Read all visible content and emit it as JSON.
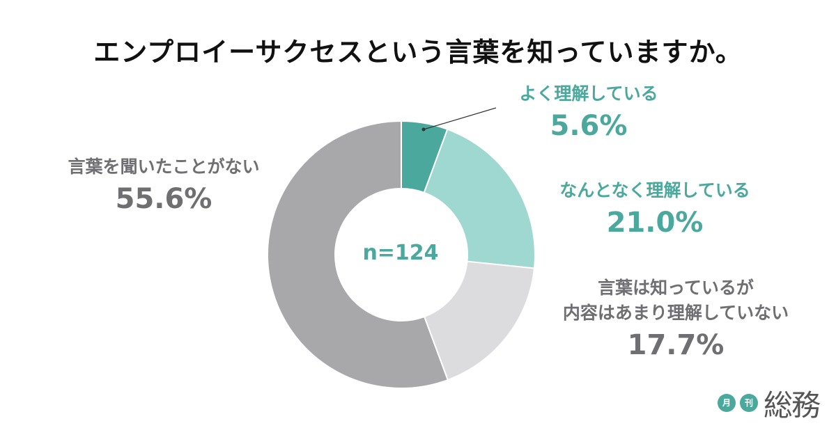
{
  "title": "エンプロイーサクセスという言葉を知っていますか。",
  "chart_data": {
    "type": "pie",
    "style": "donut",
    "sample_size": "n=124",
    "slices": [
      {
        "label": "よく理解している",
        "value": 5.6,
        "value_label": "5.6%",
        "color": "#4aa89c"
      },
      {
        "label": "なんとなく理解している",
        "value": 21.0,
        "value_label": "21.0%",
        "color": "#9fd8d0"
      },
      {
        "label_lines": [
          "言葉は知っているが",
          "内容はあまり理解していない"
        ],
        "value": 17.7,
        "value_label": "17.7%",
        "color": "#dcdbde"
      },
      {
        "label": "言葉を聞いたことがない",
        "value": 55.6,
        "value_label": "55.6%",
        "color": "#a8a7aa"
      }
    ]
  },
  "logo": {
    "badge1": "月",
    "badge2": "刊",
    "name": "総務"
  }
}
